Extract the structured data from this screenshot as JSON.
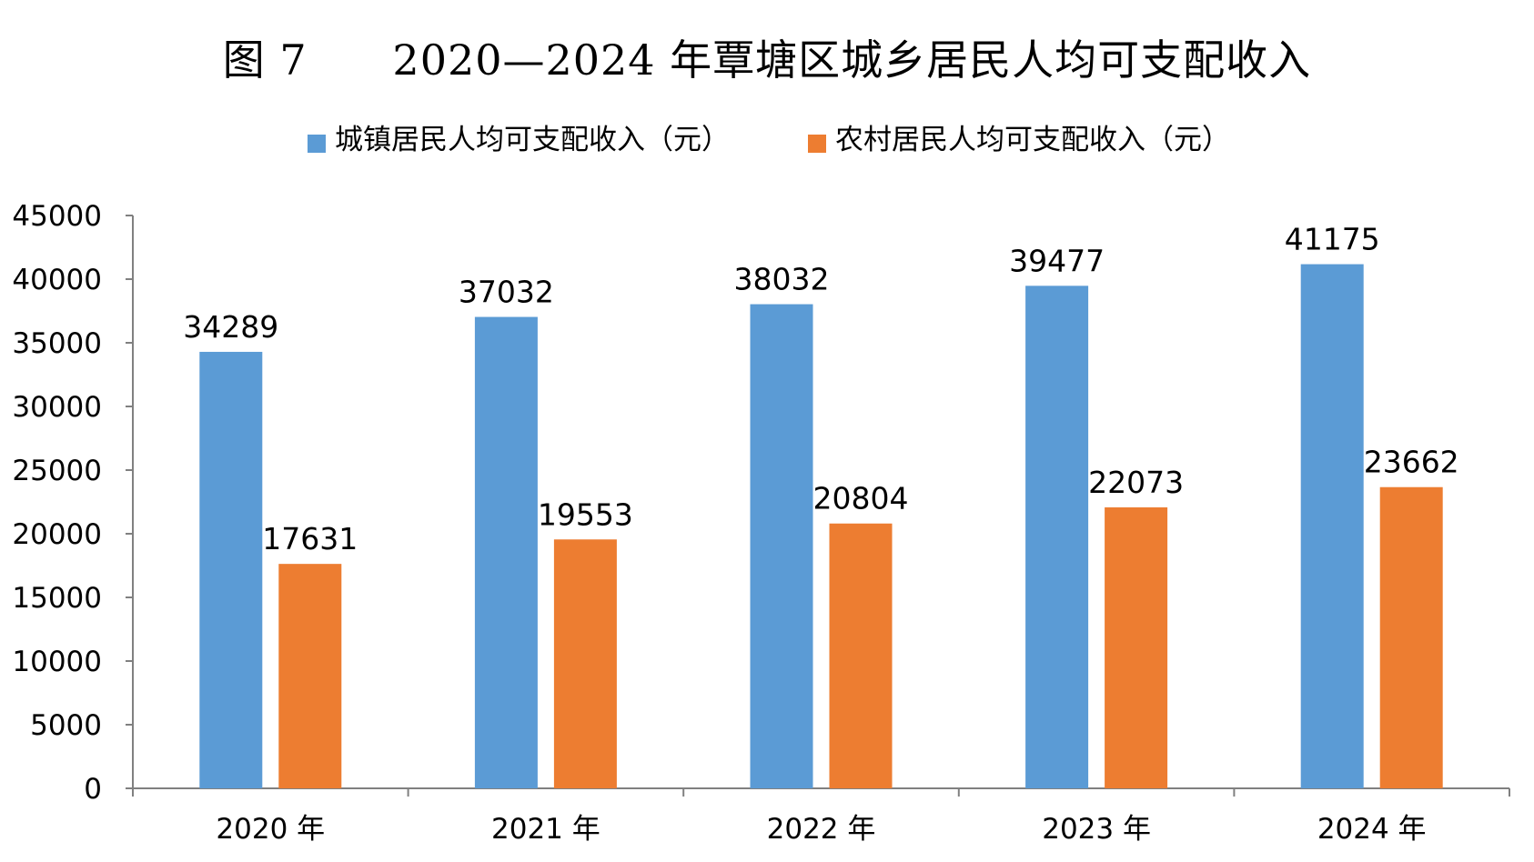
{
  "title_prefix": "图 7",
  "title_main": "2020—2024 年覃塘区城乡居民人均可支配收入",
  "chart_data": {
    "type": "bar",
    "title": "2020—2024 年覃塘区城乡居民人均可支配收入",
    "categories": [
      "2020 年",
      "2021 年",
      "2022 年",
      "2023 年",
      "2024 年"
    ],
    "series": [
      {
        "name": "城镇居民人均可支配收入（元）",
        "color": "#5b9bd5",
        "values": [
          34289,
          37032,
          38032,
          39477,
          41175
        ]
      },
      {
        "name": "农村居民人均可支配收入（元）",
        "color": "#ed7d31",
        "values": [
          17631,
          19553,
          20804,
          22073,
          23662
        ]
      }
    ],
    "ylim": [
      0,
      45000
    ],
    "yticks": [
      0,
      5000,
      10000,
      15000,
      20000,
      25000,
      30000,
      35000,
      40000,
      45000
    ],
    "legend_position": "top",
    "grid": false
  }
}
